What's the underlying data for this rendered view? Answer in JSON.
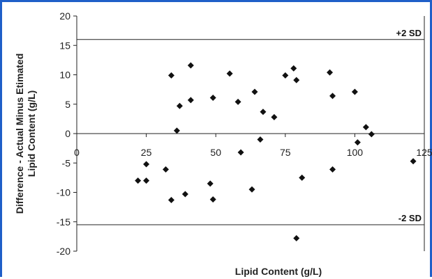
{
  "chart_data": {
    "type": "scatter",
    "xlabel": "Lipid Content (g/L)",
    "ylabel_line1": "Difference - Actual Minus Etimated",
    "ylabel_line2": "Lipid Content (g/L)",
    "xlim": [
      0,
      125
    ],
    "ylim": [
      -20,
      20
    ],
    "xticks": [
      0,
      25,
      50,
      75,
      100,
      125
    ],
    "yticks": [
      -20,
      -15,
      -10,
      -5,
      0,
      5,
      10,
      15,
      20
    ],
    "grid": false,
    "legend": "none",
    "marker_color": "#111111",
    "reference_lines": [
      {
        "label": "+2 SD",
        "y": 16
      },
      {
        "label": "-2 SD",
        "y": -15.5
      }
    ],
    "points": [
      {
        "x": 22,
        "y": -8
      },
      {
        "x": 25,
        "y": -5.2
      },
      {
        "x": 25,
        "y": -8
      },
      {
        "x": 32,
        "y": -6.1
      },
      {
        "x": 34,
        "y": 9.9
      },
      {
        "x": 34,
        "y": -11.3
      },
      {
        "x": 36,
        "y": 0.5
      },
      {
        "x": 37,
        "y": 4.7
      },
      {
        "x": 39,
        "y": -10.3
      },
      {
        "x": 41,
        "y": 5.7
      },
      {
        "x": 41,
        "y": 11.6
      },
      {
        "x": 48,
        "y": -8.5
      },
      {
        "x": 49,
        "y": 6.1
      },
      {
        "x": 49,
        "y": -11.2
      },
      {
        "x": 55,
        "y": 10.2
      },
      {
        "x": 58,
        "y": 5.4
      },
      {
        "x": 59,
        "y": -3.2
      },
      {
        "x": 63,
        "y": -9.5
      },
      {
        "x": 64,
        "y": 7.1
      },
      {
        "x": 66,
        "y": -1.0
      },
      {
        "x": 67,
        "y": 3.7
      },
      {
        "x": 71,
        "y": 2.8
      },
      {
        "x": 75,
        "y": 9.9
      },
      {
        "x": 78,
        "y": 11.1
      },
      {
        "x": 79,
        "y": 9.1
      },
      {
        "x": 79,
        "y": -17.8
      },
      {
        "x": 81,
        "y": -7.5
      },
      {
        "x": 91,
        "y": 10.4
      },
      {
        "x": 92,
        "y": 6.4
      },
      {
        "x": 92,
        "y": -6.1
      },
      {
        "x": 100,
        "y": 7.1
      },
      {
        "x": 101,
        "y": -1.5
      },
      {
        "x": 104,
        "y": 1.1
      },
      {
        "x": 106,
        "y": -0.1
      },
      {
        "x": 121,
        "y": -4.7
      }
    ]
  }
}
